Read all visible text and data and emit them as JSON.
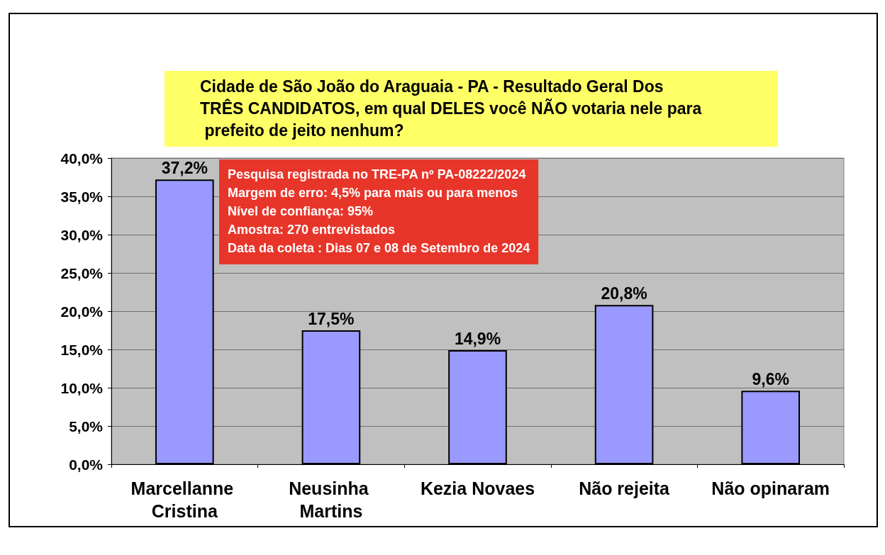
{
  "chart_data": {
    "type": "bar",
    "title": "Cidade de São João do Araguaia - PA - Resultado Geral Dos TRÊS CANDIDATOS, em qual DELES você NÃO votaria nele para prefeito de jeito nenhum?",
    "categories": [
      "Marcellanne Cristina",
      "Neusinha Martins",
      "Kezia Novaes",
      "Não rejeita",
      "Não opinaram"
    ],
    "values": [
      37.2,
      17.5,
      14.9,
      20.8,
      9.6
    ],
    "value_labels": [
      "37,2%",
      "17,5%",
      "14,9%",
      "20,8%",
      "9,6%"
    ],
    "color": "#9999ff",
    "ylim": [
      0,
      40
    ],
    "yticks": [
      {
        "value": 0,
        "label": "0,0%"
      },
      {
        "value": 5,
        "label": "5,0%"
      },
      {
        "value": 10,
        "label": "10,0%"
      },
      {
        "value": 15,
        "label": "15,0%"
      },
      {
        "value": 20,
        "label": "20,0%"
      },
      {
        "value": 25,
        "label": "25,0%"
      },
      {
        "value": 30,
        "label": "30,0%"
      },
      {
        "value": 35,
        "label": "35,0%"
      },
      {
        "value": 40,
        "label": "40,0%"
      }
    ],
    "grid": "y",
    "annotations": [
      "Pesquisa registrada no TRE-PA nº PA-08222/2024",
      "Margem de erro: 4,5% para mais ou para menos",
      "Nível de confiança: 95%",
      "Amostra: 270 entrevistados",
      "Data da coleta : Dias 07 e 08 de Setembro de 2024"
    ]
  }
}
